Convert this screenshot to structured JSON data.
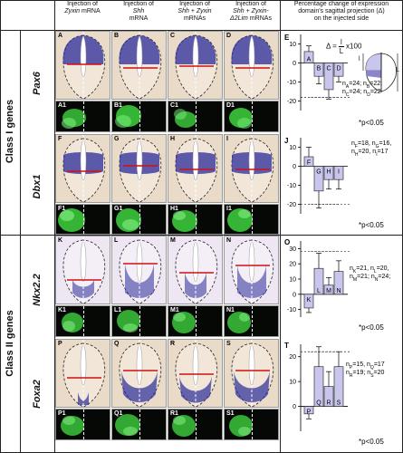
{
  "headers": {
    "col1": {
      "prefix": "Injection of",
      "gene": "Zyxin",
      "suffix": "mRNA"
    },
    "col2": {
      "prefix": "Injection of",
      "gene": "Shh",
      "suffix": "mRNA"
    },
    "col3": {
      "prefix": "Injection of",
      "gene": "Shh + Zyxin",
      "suffix": "mRNAs"
    },
    "col4": {
      "prefix": "Injection of",
      "gene": "Shh + Zyxin-",
      "gene2": "Δ2Lim",
      "suffix": "mRNAs"
    },
    "col5": {
      "line1": "Percentage change of expression",
      "line2": "domain's sagittal projection (Δ)",
      "line3": "on the injected side"
    }
  },
  "classes": {
    "class1": "Class I genes",
    "class2": "Class II genes"
  },
  "genes": [
    "Pax6",
    "Dbx1",
    "Nkx2.2",
    "Foxa2"
  ],
  "rows": [
    {
      "top": [
        "A",
        "B",
        "C",
        "D"
      ],
      "bottom": [
        "A1",
        "B1",
        "C1",
        "D1"
      ]
    },
    {
      "top": [
        "F",
        "G",
        "H",
        "I"
      ],
      "bottom": [
        "F1",
        "G1",
        "H1",
        "I1"
      ]
    },
    {
      "top": [
        "K",
        "L",
        "M",
        "N"
      ],
      "bottom": [
        "K1",
        "L1",
        "M1",
        "N1"
      ]
    },
    {
      "top": [
        "P",
        "Q",
        "R",
        "S"
      ],
      "bottom": [
        "P1",
        "Q1",
        "R1",
        "S1"
      ]
    }
  ],
  "formula": {
    "lhs": "Δ =",
    "num": "l",
    "den": "L",
    "factor": "x100"
  },
  "schematic": {
    "L": "L",
    "l": "l"
  },
  "chart_data": [
    {
      "panel": "E",
      "type": "bar",
      "categories": [
        "A",
        "B",
        "C",
        "D"
      ],
      "values": [
        6,
        -7,
        -14,
        -7
      ],
      "errors": [
        3,
        4,
        5,
        3
      ],
      "ylim": [
        -25,
        15
      ],
      "yticks": [
        10,
        0,
        -10,
        -20
      ],
      "n": [
        "n_A=24; n_B=22;",
        "n_C=24; n_D=22"
      ],
      "p": "*p<0.05",
      "sig_level": -18
    },
    {
      "panel": "J",
      "type": "bar",
      "categories": [
        "F",
        "G",
        "H",
        "I"
      ],
      "values": [
        5,
        -13,
        -7,
        -7
      ],
      "errors": [
        5,
        9,
        5,
        5
      ],
      "ylim": [
        -25,
        15
      ],
      "yticks": [
        10,
        0,
        -10,
        -20
      ],
      "n": [
        "n_F=18, n_G=16,",
        "n_H=20, n_I=17"
      ],
      "p": "*p<0.05",
      "sig_level": -20
    },
    {
      "panel": "O",
      "type": "bar",
      "categories": [
        "K",
        "L",
        "M",
        "N"
      ],
      "values": [
        -9,
        17,
        6,
        15
      ],
      "errors": [
        3,
        10,
        5,
        7
      ],
      "ylim": [
        -15,
        35
      ],
      "yticks": [
        30,
        20,
        10,
        0,
        -10
      ],
      "n": [
        "n_K=21, n_L=20,",
        "n_M=21; n_N=24;"
      ],
      "p": "*p<0.05",
      "sig_level": 28
    },
    {
      "panel": "T",
      "type": "bar",
      "categories": [
        "P",
        "Q",
        "R",
        "S"
      ],
      "values": [
        -3,
        16,
        8,
        16
      ],
      "errors": [
        2,
        8,
        6,
        6
      ],
      "ylim": [
        -10,
        25
      ],
      "yticks": [
        20,
        10,
        0
      ],
      "n": [
        "n_P=15, n_Q=17",
        "n_R=19; n_S=20"
      ],
      "p": "*p<0.05",
      "sig_level": 22
    }
  ],
  "colors": {
    "bar": "#c9c6ee",
    "bar_stroke": "#333",
    "stain": "#2a2a9a",
    "gfp": "#3fd23f",
    "tissue": "#e9d6c2",
    "boundary": "#d01010"
  }
}
